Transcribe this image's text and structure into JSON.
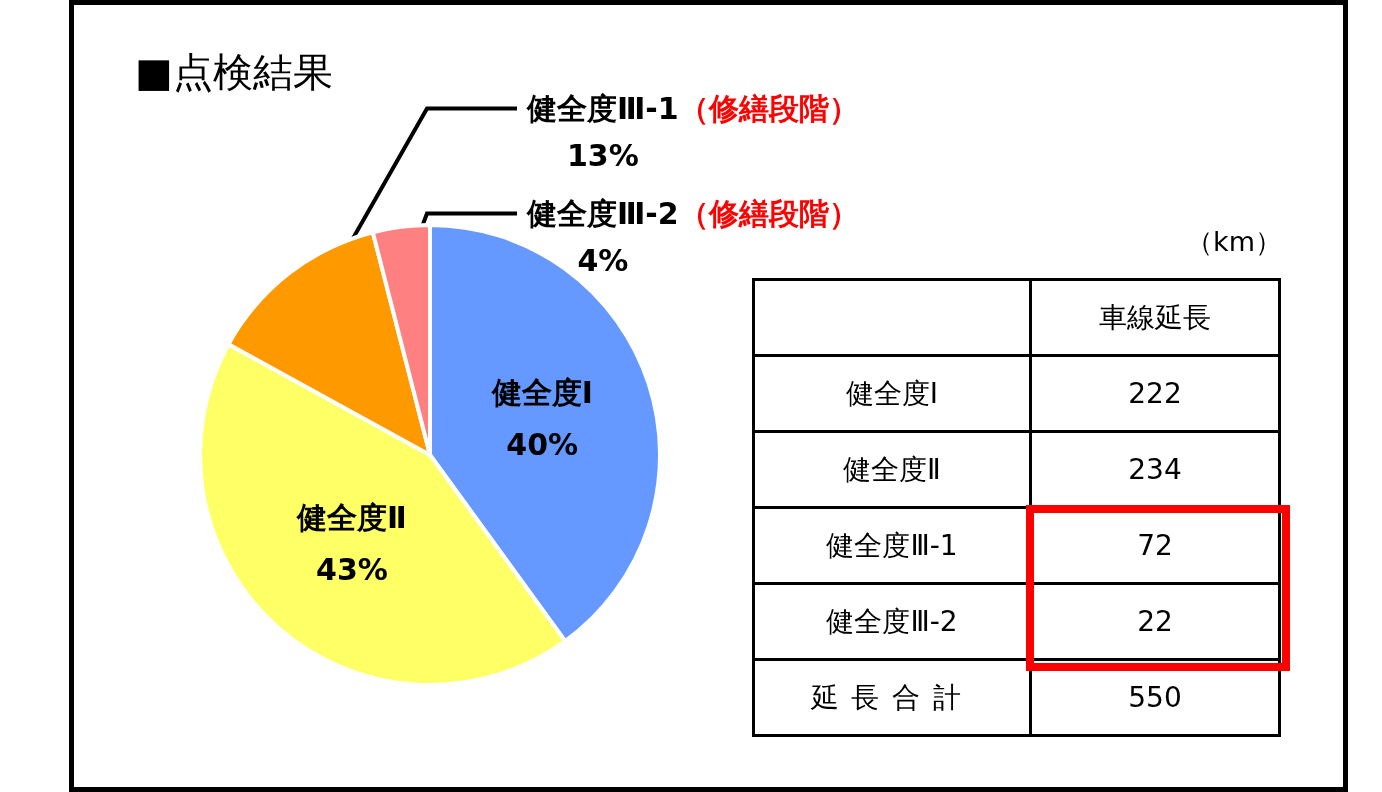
{
  "chart_data": [
    {
      "type": "pie",
      "title": "■点検結果",
      "categories": [
        "健全度Ⅰ",
        "健全度Ⅱ",
        "健全度Ⅲ-1",
        "健全度Ⅲ-2"
      ],
      "values": [
        40,
        43,
        13,
        4
      ],
      "colors": [
        "#6699ff",
        "#ffff66",
        "#ff9900",
        "#ff8080"
      ],
      "value_labels": [
        "40%",
        "43%",
        "13%",
        "4%"
      ],
      "annotations": [
        {
          "text": "（修繕段階）",
          "x": "健全度Ⅲ-1"
        },
        {
          "text": "（修繕段階）",
          "x": "健全度Ⅲ-2"
        }
      ]
    },
    {
      "type": "other",
      "categories": [
        "健全度Ⅰ",
        "健全度Ⅱ",
        "健全度Ⅲ-1",
        "健全度Ⅲ-2"
      ],
      "values": [
        222,
        234,
        72,
        22
      ],
      "data_labels": true,
      "totals": [
        "550"
      ],
      "annotations": [
        "（km）",
        "車線延長",
        "延長合計"
      ]
    }
  ]
}
